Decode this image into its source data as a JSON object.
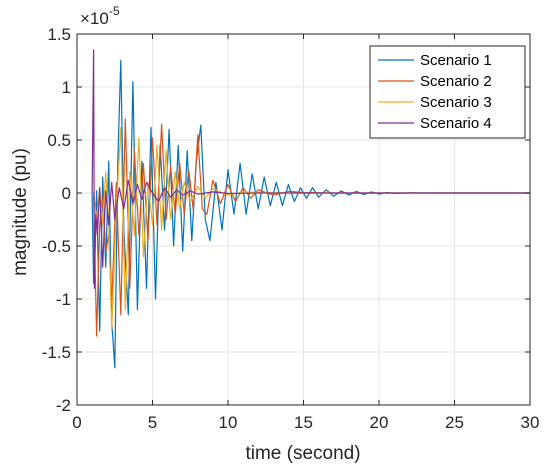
{
  "chart_data": {
    "type": "line",
    "xlabel": "time (second)",
    "ylabel": "magnitude (pu)",
    "y_exponent_label": "×10",
    "y_exponent_power": "-5",
    "xlim": [
      0,
      30
    ],
    "ylim": [
      -2,
      1.5
    ],
    "x_ticks": [
      "0",
      "5",
      "10",
      "15",
      "20",
      "25",
      "30"
    ],
    "y_ticks": [
      "-2",
      "-1.5",
      "-1",
      "-0.5",
      "0",
      "0.5",
      "1",
      "1.5"
    ],
    "grid": true,
    "legend_position": "top-right",
    "series": [
      {
        "name": "Scenario 1",
        "color": "#0072BD",
        "x": [
          1.0,
          1.1,
          1.3,
          1.5,
          1.7,
          1.9,
          2.1,
          2.3,
          2.5,
          2.7,
          2.9,
          3.1,
          3.4,
          3.7,
          4.0,
          4.3,
          4.6,
          4.9,
          5.2,
          5.5,
          5.8,
          6.1,
          6.4,
          6.7,
          7.0,
          7.3,
          7.6,
          7.9,
          8.2,
          8.5,
          8.8,
          9.2,
          9.6,
          10.0,
          10.4,
          10.8,
          11.2,
          11.6,
          12.0,
          12.4,
          12.8,
          13.2,
          13.6,
          14.0,
          14.4,
          14.8,
          15.2,
          15.6,
          16.0,
          16.5,
          17.0,
          17.5,
          18.0,
          18.5,
          19.0,
          19.5,
          20.0,
          20.5,
          21.0,
          22.0,
          24.0,
          27.0,
          30.0
        ],
        "y": [
          0.0,
          -0.85,
          0.02,
          -1.3,
          0.15,
          -0.7,
          0.3,
          -1.2,
          -1.65,
          0.3,
          1.25,
          -0.35,
          -1.15,
          1.05,
          -1.1,
          0.3,
          -0.9,
          0.62,
          -1.0,
          0.45,
          -0.35,
          0.6,
          -0.5,
          0.45,
          -0.55,
          0.4,
          -0.45,
          0.3,
          0.64,
          -0.25,
          -0.45,
          0.1,
          -0.35,
          0.22,
          -0.2,
          0.28,
          -0.2,
          0.18,
          -0.15,
          0.15,
          -0.12,
          0.1,
          -0.12,
          0.08,
          -0.08,
          0.05,
          -0.05,
          0.05,
          -0.04,
          0.03,
          -0.03,
          0.02,
          -0.02,
          0.015,
          -0.015,
          0.01,
          -0.01,
          0.005,
          -0.005,
          0.002,
          0.0,
          0.0,
          0.0
        ]
      },
      {
        "name": "Scenario 2",
        "color": "#D95319",
        "x": [
          1.0,
          1.1,
          1.3,
          1.5,
          1.7,
          1.9,
          2.1,
          2.3,
          2.6,
          2.9,
          3.2,
          3.5,
          3.8,
          4.1,
          4.4,
          4.7,
          5.0,
          5.3,
          5.6,
          5.9,
          6.2,
          6.5,
          6.8,
          7.1,
          7.4,
          7.7,
          8.0,
          8.3,
          8.6,
          9.0,
          9.5,
          10.0,
          10.5,
          11.0,
          11.5,
          12.0,
          13.0,
          14.0,
          15.0,
          17.0,
          20.0,
          25.0,
          30.0
        ],
        "y": [
          0.0,
          0.0,
          -1.35,
          -0.3,
          -0.05,
          -0.55,
          -0.4,
          -1.05,
          0.1,
          -1.15,
          0.7,
          -0.9,
          0.4,
          -0.4,
          0.28,
          -0.45,
          0.52,
          -0.3,
          0.65,
          -0.25,
          0.25,
          -0.2,
          0.28,
          -0.2,
          0.22,
          -0.16,
          0.55,
          -0.15,
          -0.2,
          0.12,
          -0.1,
          0.08,
          -0.08,
          0.05,
          -0.05,
          0.03,
          -0.02,
          0.015,
          0.005,
          0.0,
          0.0,
          0.0,
          0.0
        ]
      },
      {
        "name": "Scenario 3",
        "color": "#EDB120",
        "x": [
          1.0,
          1.1,
          1.3,
          1.5,
          1.7,
          1.9,
          2.1,
          2.3,
          2.6,
          2.9,
          3.2,
          3.5,
          3.8,
          4.1,
          4.4,
          4.7,
          5.0,
          5.3,
          5.6,
          5.9,
          6.2,
          6.5,
          6.8,
          7.1,
          7.5,
          8.0,
          8.5,
          9.0,
          10.0,
          11.0,
          12.0,
          14.0,
          17.0,
          20.0,
          25.0,
          30.0
        ],
        "y": [
          0.0,
          0.0,
          -0.25,
          0.05,
          -0.3,
          0.2,
          -0.25,
          -1.3,
          -0.15,
          0.62,
          -1.1,
          0.2,
          -0.4,
          0.52,
          -0.6,
          0.1,
          -0.3,
          0.45,
          -0.35,
          0.4,
          -0.25,
          0.2,
          -0.15,
          0.1,
          -0.08,
          0.06,
          -0.05,
          0.04,
          -0.02,
          0.01,
          0.005,
          0.0,
          0.0,
          0.0,
          0.0,
          0.0
        ]
      },
      {
        "name": "Scenario 4",
        "color": "#7E2F8E",
        "x": [
          1.0,
          1.1,
          1.15,
          1.25,
          1.35,
          1.5,
          1.7,
          1.9,
          2.1,
          2.3,
          2.5,
          2.8,
          3.1,
          3.4,
          3.7,
          4.0,
          4.3,
          4.6,
          5.0,
          5.4,
          5.8,
          6.2,
          6.6,
          7.0,
          7.5,
          8.0,
          9.0,
          10.0,
          12.0,
          15.0,
          20.0,
          25.0,
          30.0
        ],
        "y": [
          0.0,
          1.35,
          -0.9,
          -0.2,
          -0.4,
          0.05,
          -0.7,
          0.02,
          -0.3,
          0.1,
          -0.25,
          0.05,
          -0.15,
          0.12,
          -0.1,
          0.08,
          -0.06,
          0.1,
          0.0,
          -0.08,
          0.05,
          -0.04,
          0.03,
          -0.02,
          0.02,
          -0.01,
          0.01,
          -0.005,
          0.0,
          0.0,
          0.0,
          0.0,
          0.0
        ]
      }
    ]
  }
}
